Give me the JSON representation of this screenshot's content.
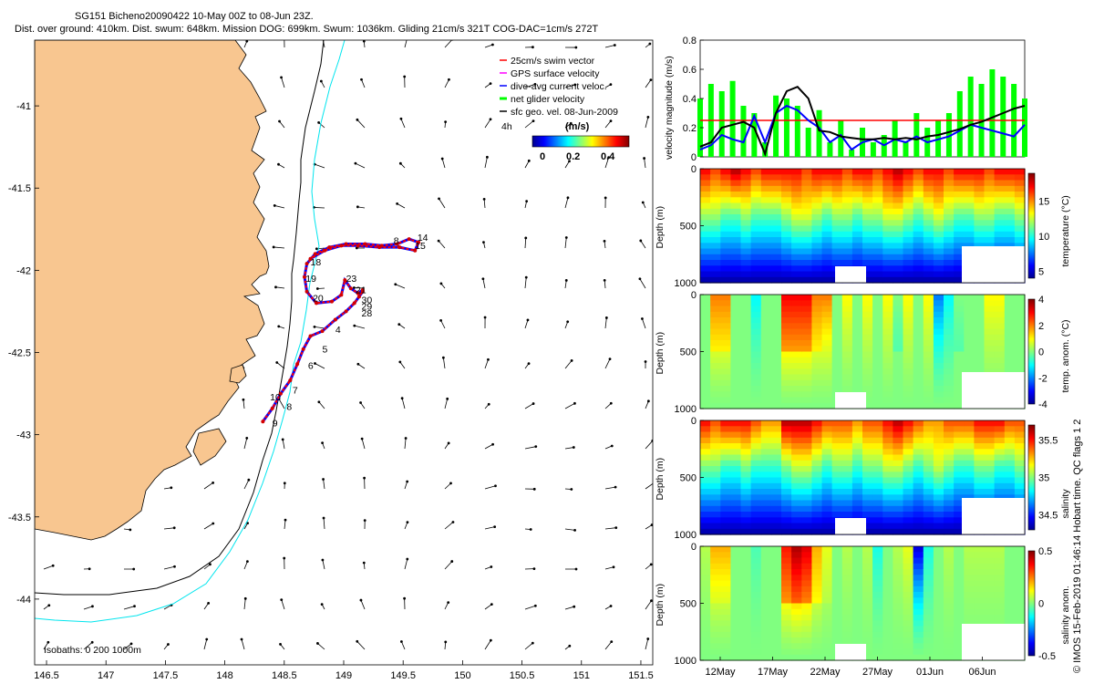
{
  "title": {
    "line1": "SG151 Bicheno20090422 10-May 00Z to 08-Jun 23Z.",
    "line2": "Dist. over ground: 410km. Dist. swum: 648km. Mission DOG: 699km. Swum: 1036km. Gliding 21cm/s 321T COG-DAC=1cm/s 272T"
  },
  "credit": "© IMOS 15-Feb-2019 01:46:14 Hobart time. QC flags 1  2",
  "colors": {
    "land": "#f8c690",
    "coast": "#000000",
    "iso200": "#000000",
    "iso1000": "#00e5ee",
    "track_red": "#ff0000",
    "track_blue": "#0000ff",
    "green": "#00ff00",
    "black": "#000000",
    "marker_red": "#d40000"
  },
  "chart_data": [
    {
      "type": "map",
      "xlim": [
        146.4,
        151.6
      ],
      "ylim": [
        -44.4,
        -40.6
      ],
      "x_ticks": [
        "146.5",
        "147",
        "147.5",
        "148",
        "148.5",
        "149",
        "149.5",
        "150",
        "150.5",
        "151",
        "151.5"
      ],
      "y_ticks": [
        "-41",
        "-41.5",
        "-42",
        "-42.5",
        "-43",
        "-43.5",
        "-44"
      ],
      "legend": {
        "entries": [
          "25cm/s swim vector",
          "GPS surface velocity",
          "dive-avg current veloc.",
          "net glider velocity",
          "sfc geo. vel. 08-Jun-2009"
        ],
        "entry_colors": [
          "#ff0000",
          "#ff00ff",
          "#0000ff",
          "#00ff00",
          "#000000"
        ],
        "extra_label": "4h",
        "colorbar_label": "(m/s)",
        "colorbar_ticks": [
          "0",
          "0.2",
          "0.4"
        ]
      },
      "isobaths_label": "Isobaths: 0   200   1000m",
      "track": [
        [
          148.32,
          -42.92
        ],
        [
          148.4,
          -42.84
        ],
        [
          148.47,
          -42.75
        ],
        [
          148.55,
          -42.67
        ],
        [
          148.61,
          -42.57
        ],
        [
          148.66,
          -42.48
        ],
        [
          148.72,
          -42.4
        ],
        [
          148.82,
          -42.37
        ],
        [
          148.93,
          -42.3
        ],
        [
          149.02,
          -42.25
        ],
        [
          149.09,
          -42.2
        ],
        [
          149.13,
          -42.16
        ],
        [
          149.16,
          -42.13
        ],
        [
          149.16,
          -42.12
        ],
        [
          149.12,
          -42.14
        ],
        [
          149.06,
          -42.11
        ],
        [
          149.01,
          -42.06
        ],
        [
          148.98,
          -42.15
        ],
        [
          148.9,
          -42.19
        ],
        [
          148.77,
          -42.2
        ],
        [
          148.69,
          -42.13
        ],
        [
          148.67,
          -42.04
        ],
        [
          148.69,
          -41.96
        ],
        [
          148.76,
          -41.9
        ],
        [
          148.88,
          -41.86
        ],
        [
          149.02,
          -41.84
        ],
        [
          149.18,
          -41.84
        ],
        [
          149.32,
          -41.85
        ],
        [
          149.45,
          -41.84
        ],
        [
          149.55,
          -41.81
        ],
        [
          149.63,
          -41.83
        ],
        [
          149.6,
          -41.88
        ],
        [
          149.47,
          -41.86
        ],
        [
          149.3,
          -41.86
        ],
        [
          149.12,
          -41.85
        ],
        [
          148.98,
          -41.85
        ],
        [
          148.84,
          -41.88
        ],
        [
          148.72,
          -41.93
        ]
      ],
      "day_labels": [
        {
          "text": "9",
          "lon": 148.4,
          "lat": -42.95
        },
        {
          "text": "10",
          "lon": 148.38,
          "lat": -42.79
        },
        {
          "text": "8",
          "lon": 148.52,
          "lat": -42.85
        },
        {
          "text": "7",
          "lon": 148.57,
          "lat": -42.75
        },
        {
          "text": "6",
          "lon": 148.7,
          "lat": -42.6
        },
        {
          "text": "5",
          "lon": 148.82,
          "lat": -42.5
        },
        {
          "text": "4",
          "lon": 148.93,
          "lat": -42.38
        },
        {
          "text": "20",
          "lon": 148.74,
          "lat": -42.19
        },
        {
          "text": "19",
          "lon": 148.68,
          "lat": -42.07
        },
        {
          "text": "18",
          "lon": 148.72,
          "lat": -41.97
        },
        {
          "text": "23",
          "lon": 149.02,
          "lat": -42.07
        },
        {
          "text": "21",
          "lon": 149.1,
          "lat": -42.14
        },
        {
          "text": "30",
          "lon": 149.15,
          "lat": -42.2
        },
        {
          "text": "29",
          "lon": 149.15,
          "lat": -42.24
        },
        {
          "text": "28",
          "lon": 149.15,
          "lat": -42.28
        },
        {
          "text": "14",
          "lon": 149.62,
          "lat": -41.82
        },
        {
          "text": "15",
          "lon": 149.6,
          "lat": -41.87
        },
        {
          "text": "8",
          "lon": 149.42,
          "lat": -41.84
        }
      ]
    },
    {
      "type": "line",
      "ylabel": "velocity magnitude (m/s)",
      "ylim": [
        0,
        0.8
      ],
      "y_ticks": [
        "0",
        "0.2",
        "0.4",
        "0.6",
        "0.8"
      ],
      "x_range_days": [
        0,
        30
      ],
      "series": [
        {
          "color": "#ff0000",
          "x": [
            0,
            30
          ],
          "values": [
            0.25,
            0.25
          ]
        },
        {
          "color": "#000000",
          "x": [
            0,
            1,
            2,
            3,
            4,
            5,
            6,
            7,
            8,
            9,
            10,
            11,
            12,
            13,
            14,
            15,
            16,
            17,
            18,
            19,
            20,
            21,
            22,
            23,
            24,
            25,
            26,
            27,
            28,
            29,
            30
          ],
          "values": [
            0.07,
            0.1,
            0.2,
            0.22,
            0.24,
            0.2,
            0.02,
            0.3,
            0.45,
            0.48,
            0.4,
            0.18,
            0.17,
            0.14,
            0.13,
            0.12,
            0.12,
            0.13,
            0.12,
            0.13,
            0.12,
            0.14,
            0.15,
            0.17,
            0.19,
            0.22,
            0.24,
            0.27,
            0.3,
            0.33,
            0.35
          ]
        },
        {
          "color": "#0000ff",
          "x": [
            0,
            1,
            2,
            3,
            4,
            5,
            6,
            7,
            8,
            9,
            10,
            11,
            12,
            13,
            14,
            15,
            16,
            17,
            18,
            19,
            20,
            21,
            22,
            23,
            24,
            25,
            26,
            27,
            28,
            29,
            30
          ],
          "values": [
            0.05,
            0.08,
            0.15,
            0.12,
            0.1,
            0.28,
            0.1,
            0.3,
            0.35,
            0.32,
            0.25,
            0.2,
            0.1,
            0.15,
            0.05,
            0.1,
            0.12,
            0.08,
            0.12,
            0.1,
            0.14,
            0.1,
            0.12,
            0.14,
            0.18,
            0.22,
            0.2,
            0.18,
            0.16,
            0.14,
            0.22
          ]
        },
        {
          "color": "#00ff00",
          "x": [
            0,
            1,
            2,
            3,
            4,
            5,
            6,
            7,
            8,
            9,
            10,
            11,
            12,
            13,
            14,
            15,
            16,
            17,
            18,
            19,
            20,
            21,
            22,
            23,
            24,
            25,
            26,
            27,
            28,
            29,
            30
          ],
          "values": [
            0.4,
            0.5,
            0.45,
            0.52,
            0.35,
            0.3,
            0.1,
            0.42,
            0.4,
            0.35,
            0.2,
            0.32,
            0.1,
            0.25,
            0.05,
            0.2,
            0.1,
            0.15,
            0.25,
            0.1,
            0.3,
            0.2,
            0.25,
            0.3,
            0.45,
            0.55,
            0.5,
            0.6,
            0.55,
            0.5,
            0.4
          ]
        }
      ]
    },
    {
      "type": "heatmap",
      "panels": [
        {
          "ylabel": "Depth (m)",
          "cbar_label": "temperature (°C)",
          "cbar_ticks": [
            "15",
            "10",
            "5"
          ],
          "cbar_range": [
            4,
            19
          ],
          "surface": [
            17,
            16,
            17,
            18,
            17,
            16,
            17,
            17,
            17,
            17,
            16,
            17,
            17,
            17,
            16,
            17,
            17,
            16,
            17,
            18,
            17,
            16,
            17,
            17,
            16,
            17,
            17,
            17,
            16,
            17,
            17,
            17
          ],
          "mid": [
            12,
            12,
            11,
            11,
            12,
            11,
            11,
            11,
            12,
            13,
            13,
            12,
            11,
            12,
            12,
            11,
            12,
            12,
            13,
            13,
            12,
            11,
            12,
            13,
            12,
            11,
            11,
            12,
            12,
            11,
            11,
            12
          ]
        },
        {
          "ylabel": "Depth (m)",
          "cbar_label": "temp. anom. (°C)",
          "cbar_ticks": [
            "4",
            "2",
            "0",
            "-2",
            "-4"
          ],
          "cbar_range": [
            -4,
            4
          ],
          "surface": [
            0,
            2,
            2,
            0,
            0,
            -1,
            0,
            0,
            3,
            3,
            3,
            2,
            2,
            0,
            1,
            0,
            1,
            0,
            1,
            0,
            1,
            0,
            1,
            -2,
            -1,
            0,
            0,
            0,
            1,
            1,
            0,
            0
          ],
          "mid": [
            0,
            1,
            1,
            0,
            0,
            0,
            0,
            0,
            2,
            2,
            2,
            1,
            0,
            0,
            0,
            0,
            0,
            0,
            0,
            -1,
            0,
            0,
            0,
            0,
            0,
            -1,
            0,
            0,
            0,
            0,
            0,
            0
          ]
        },
        {
          "ylabel": "Depth (m)",
          "cbar_label": "salinity",
          "cbar_ticks": [
            "35.5",
            "35",
            "34.5"
          ],
          "cbar_range": [
            34.3,
            35.7
          ],
          "surface": [
            35.5,
            35.4,
            35.5,
            35.5,
            35.5,
            35.4,
            35.3,
            35.3,
            35.6,
            35.6,
            35.6,
            35.5,
            35.4,
            35.4,
            35.4,
            35.3,
            35.4,
            35.4,
            35.5,
            35.6,
            35.5,
            35.4,
            35.3,
            35.3,
            35.4,
            35.4,
            35.4,
            35.5,
            35.5,
            35.5,
            35.4,
            35.4
          ],
          "mid": [
            35.0,
            35.0,
            34.9,
            34.9,
            35.0,
            34.9,
            34.9,
            34.9,
            35.0,
            35.1,
            35.1,
            35.0,
            34.9,
            35.0,
            35.0,
            34.9,
            35.0,
            35.0,
            35.1,
            35.1,
            35.0,
            34.9,
            35.0,
            35.1,
            35.0,
            34.9,
            34.9,
            35.0,
            35.0,
            34.9,
            34.9,
            35.0
          ]
        },
        {
          "ylabel": "Depth (m)",
          "cbar_label": "salinity anom.",
          "cbar_ticks": [
            "0.5",
            "0",
            "-0.5"
          ],
          "cbar_range": [
            -0.5,
            0.5
          ],
          "surface": [
            0.05,
            0.2,
            0.2,
            0,
            0,
            -0.05,
            0,
            0,
            0.35,
            0.45,
            0.4,
            0.2,
            0.1,
            0,
            0.05,
            0,
            0.05,
            -0.1,
            0,
            0.05,
            0.1,
            -0.4,
            -0.1,
            0,
            0.05,
            0,
            0.05,
            0.05,
            0.05,
            0.05,
            0,
            0
          ],
          "mid": [
            0,
            0.05,
            0.05,
            0,
            0,
            0,
            0,
            0,
            0.3,
            0.35,
            0.3,
            0.15,
            0.05,
            0,
            0,
            0,
            0,
            0,
            0,
            0,
            0,
            0,
            0,
            0,
            0,
            0,
            0,
            0,
            0,
            0,
            0,
            0
          ]
        }
      ],
      "depth_ticks": [
        "0",
        "500",
        "1000"
      ],
      "time_ticks": [
        "12May",
        "17May",
        "22May",
        "27May",
        "01Jun",
        "06Jun"
      ]
    }
  ]
}
